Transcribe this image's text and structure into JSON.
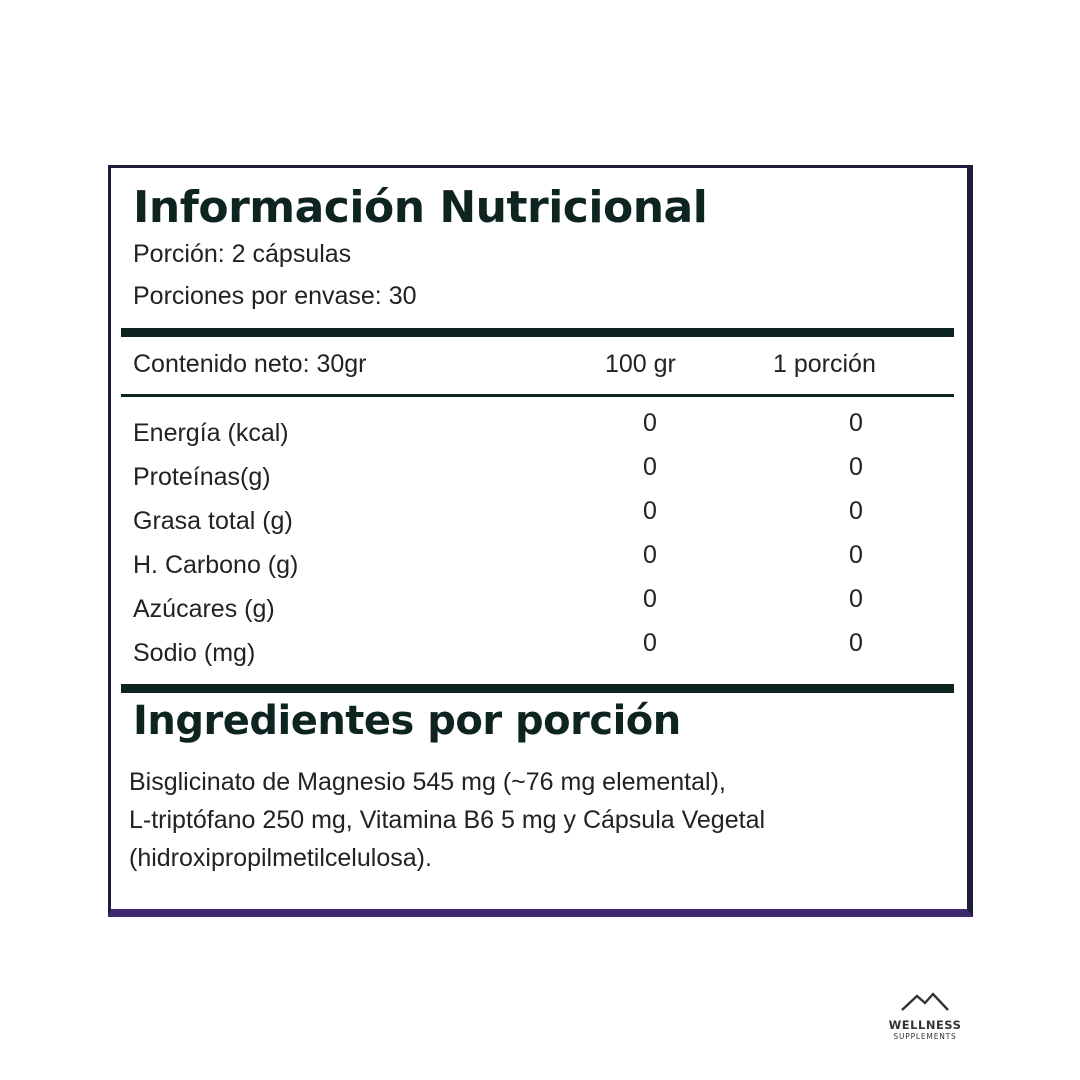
{
  "header": {
    "title": "Información Nutricional",
    "serving": "Porción: 2 cápsulas",
    "servings_per_container": "Porciones por envase: 30"
  },
  "table": {
    "columns": [
      "Contenido neto: 30gr",
      "100 gr",
      "1 porción"
    ],
    "rows": [
      {
        "label": "Energía (kcal)",
        "per100": "0",
        "perServing": "0"
      },
      {
        "label": "Proteínas(g)",
        "per100": "0",
        "perServing": "0"
      },
      {
        "label": "Grasa total (g)",
        "per100": "0",
        "perServing": "0"
      },
      {
        "label": "H. Carbono (g)",
        "per100": "0",
        "perServing": "0"
      },
      {
        "label": "Azúcares (g)",
        "per100": "0",
        "perServing": "0"
      },
      {
        "label": "Sodio (mg)",
        "per100": "0",
        "perServing": "0"
      }
    ]
  },
  "ingredients": {
    "title": "Ingredientes por porción",
    "lines": [
      "Bisglicinato de Magnesio 545 mg (~76 mg elemental),",
      "L-triptófano 250 mg, Vitamina B6 5 mg y Cápsula Vegetal",
      "(hidroxipropilmetilcelulosa)."
    ]
  },
  "logo": {
    "line1": "WELLNESS",
    "line2": "SUPPLEMENTS",
    "icon": "mountain-icon"
  },
  "colors": {
    "border": "#1b1d3a",
    "border_bottom": "#3e2b6e",
    "heading": "#0e2420"
  }
}
